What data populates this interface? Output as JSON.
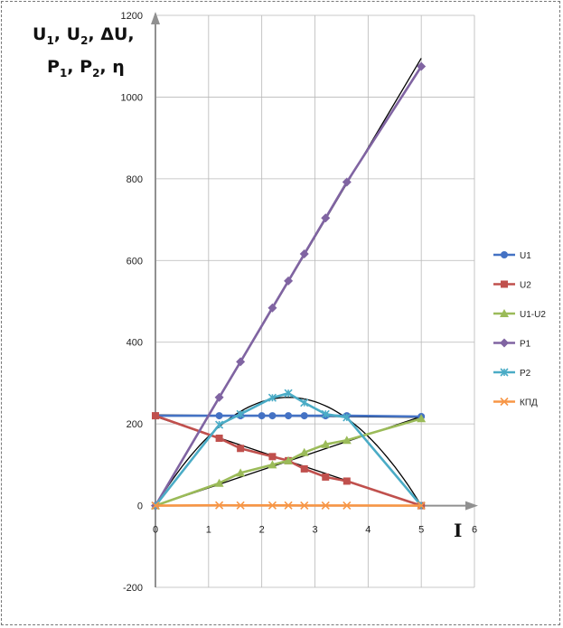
{
  "chart_data": {
    "type": "line",
    "ylabel_parts": [
      {
        "t": "U"
      },
      {
        "t": "1",
        "sub": true
      },
      {
        "t": ", U"
      },
      {
        "t": "2",
        "sub": true
      },
      {
        "t": ", ΔU,"
      }
    ],
    "ylabel_parts2": [
      {
        "t": "P"
      },
      {
        "t": "1",
        "sub": true
      },
      {
        "t": ", P"
      },
      {
        "t": "2",
        "sub": true
      },
      {
        "t": ", η"
      }
    ],
    "xlabel": "I",
    "xlim": [
      0,
      6
    ],
    "ylim": [
      -200,
      1200
    ],
    "x_ticks": [
      0,
      1,
      2,
      3,
      4,
      5,
      6
    ],
    "y_ticks": [
      -200,
      0,
      200,
      400,
      600,
      800,
      1000,
      1200
    ],
    "grid": true,
    "legend_position": "right",
    "series": [
      {
        "name": "U1",
        "color": "#4472C4",
        "marker": "circle",
        "x": [
          0,
          1.2,
          1.6,
          2.0,
          2.2,
          2.5,
          2.8,
          3.2,
          3.6,
          5.0
        ],
        "y": [
          220,
          220,
          220,
          220,
          220,
          220,
          220,
          220,
          220,
          218
        ]
      },
      {
        "name": "U2",
        "color": "#C0504D",
        "marker": "square",
        "x": [
          0,
          1.2,
          1.6,
          2.2,
          2.5,
          2.8,
          3.2,
          3.6,
          5.0
        ],
        "y": [
          220,
          165,
          140,
          120,
          110,
          90,
          70,
          60,
          0
        ]
      },
      {
        "name": "U1-U2",
        "color": "#9BBB59",
        "marker": "triangle",
        "x": [
          0,
          1.2,
          1.6,
          2.2,
          2.5,
          2.8,
          3.2,
          3.6,
          5.0
        ],
        "y": [
          0,
          55,
          80,
          100,
          110,
          130,
          150,
          160,
          213
        ]
      },
      {
        "name": "P1",
        "color": "#8064A2",
        "marker": "diamond",
        "x": [
          0,
          1.2,
          1.6,
          2.2,
          2.5,
          2.8,
          3.2,
          3.6,
          5.0
        ],
        "y": [
          0,
          265,
          352,
          484,
          550,
          616,
          704,
          792,
          1075
        ]
      },
      {
        "name": "P2",
        "color": "#4BACC6",
        "marker": "star",
        "x": [
          0,
          1.2,
          1.6,
          2.2,
          2.5,
          2.8,
          3.2,
          3.6,
          5.0
        ],
        "y": [
          0,
          198,
          224,
          264,
          275,
          252,
          224,
          216,
          0
        ]
      },
      {
        "name": "КПД",
        "color": "#F79646",
        "marker": "cross",
        "x": [
          0,
          1.2,
          1.6,
          2.2,
          2.5,
          2.8,
          3.2,
          3.6,
          5.0
        ],
        "y": [
          0,
          0.75,
          0.64,
          0.55,
          0.5,
          0.41,
          0.32,
          0.27,
          0
        ]
      }
    ],
    "trendlines": [
      {
        "type": "linear",
        "color": "#000000",
        "x": [
          0,
          5
        ],
        "y": [
          222,
          216
        ]
      },
      {
        "type": "linear",
        "color": "#000000",
        "x": [
          0,
          5
        ],
        "y": [
          218,
          0
        ]
      },
      {
        "type": "linear",
        "color": "#000000",
        "x": [
          0,
          5
        ],
        "y": [
          0,
          218
        ]
      },
      {
        "type": "linear",
        "color": "#000000",
        "x": [
          0,
          5
        ],
        "y": [
          0,
          1095
        ]
      },
      {
        "type": "parabola",
        "color": "#000000",
        "x": [
          0,
          5
        ],
        "vertex": [
          2.5,
          265
        ]
      },
      {
        "type": "linear",
        "color": "#000000",
        "x": [
          0,
          5
        ],
        "y": [
          0,
          0
        ]
      }
    ]
  }
}
